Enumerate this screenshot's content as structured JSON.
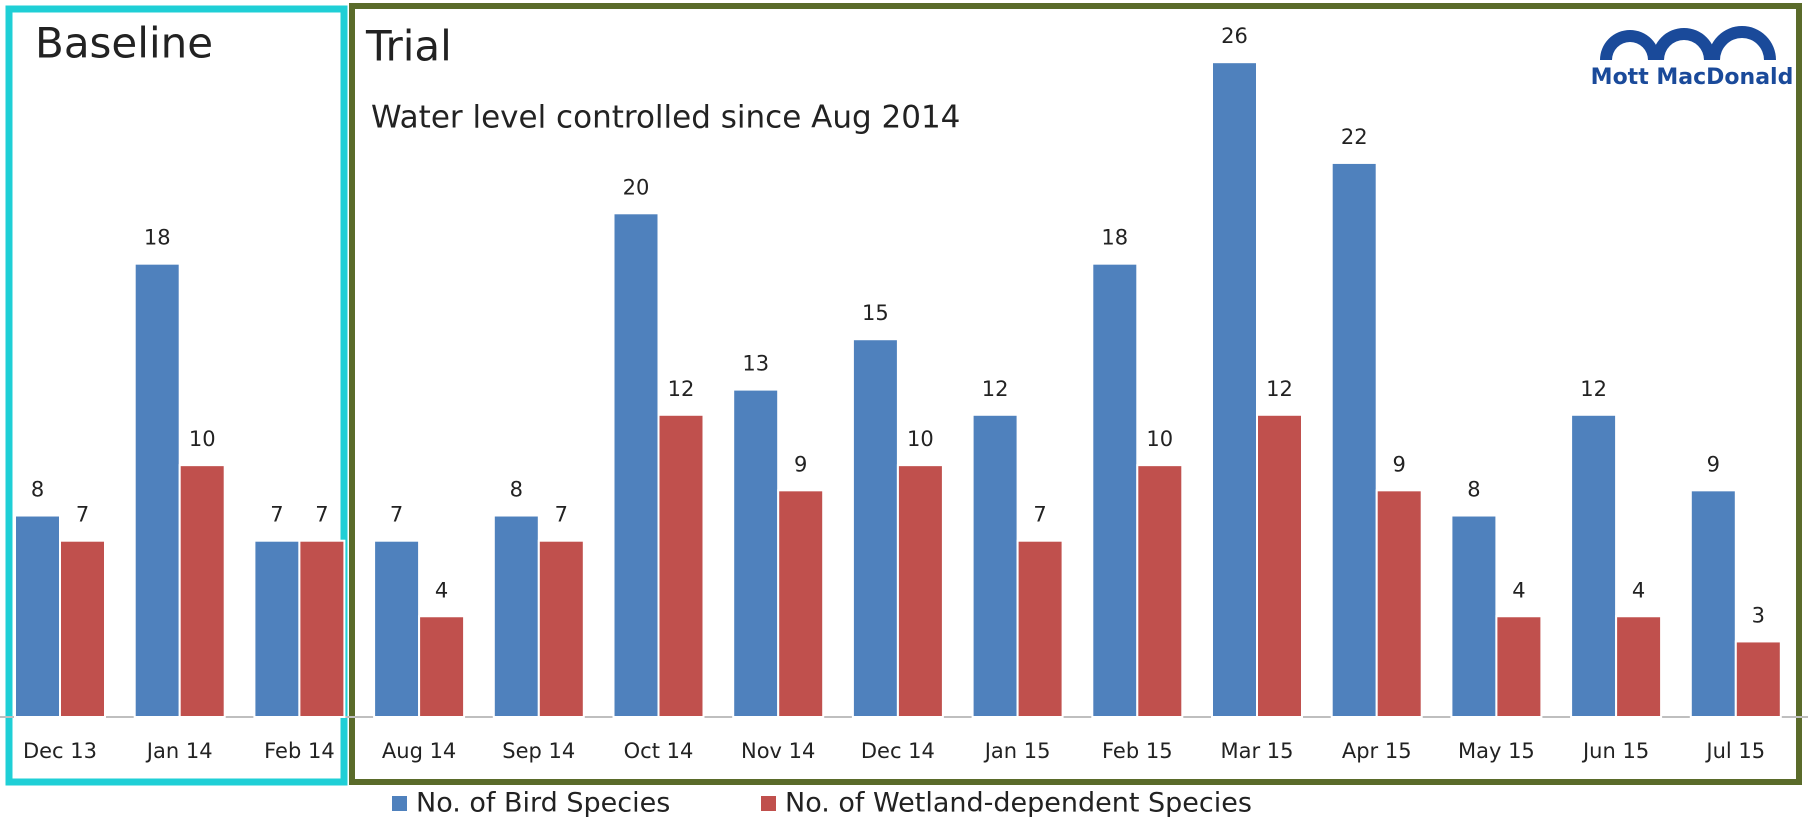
{
  "chart_data": {
    "type": "bar",
    "annotations": [
      "Baseline",
      "Trial",
      "Water level controlled since Aug 2014"
    ],
    "logo": "Mott MacDonald",
    "categories": [
      "Dec 13",
      "Jan 14",
      "Feb 14",
      "Aug 14",
      "Sep 14",
      "Oct 14",
      "Nov 14",
      "Dec 14",
      "Jan 15",
      "Feb 15",
      "Mar 15",
      "Apr 15",
      "May 15",
      "Jun 15",
      "Jul 15"
    ],
    "series": [
      {
        "name": "No. of Bird Species",
        "color": "#4f81bd",
        "values": [
          8,
          18,
          7,
          7,
          8,
          20,
          13,
          15,
          12,
          18,
          26,
          22,
          8,
          12,
          9
        ]
      },
      {
        "name": "No. of Wetland-dependent Species",
        "color": "#c0504d",
        "values": [
          7,
          10,
          7,
          4,
          7,
          12,
          9,
          10,
          7,
          10,
          12,
          9,
          4,
          4,
          3
        ]
      }
    ],
    "ylim": [
      0,
      27
    ],
    "data_labels": true,
    "legend": "bottom"
  }
}
